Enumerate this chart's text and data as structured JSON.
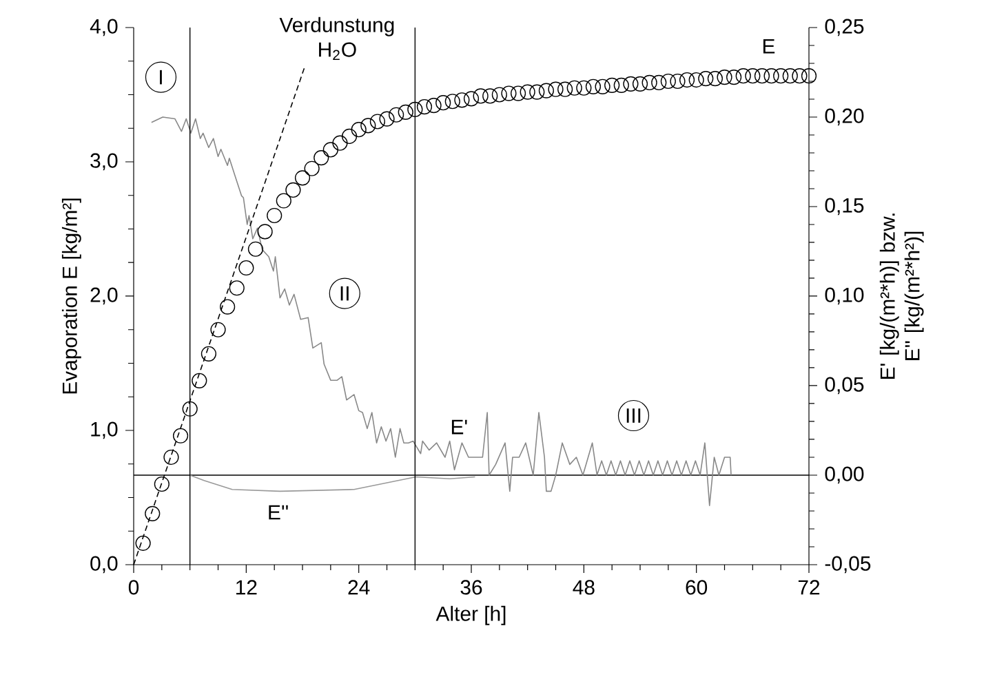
{
  "chart_data": {
    "type": "line",
    "xlabel": "Alter [h]",
    "ylabel": "Evaporation E [kg/m²]",
    "y2label": "E' [kg/(m²*h)] bzw. E'' [kg/(m²*h²)]",
    "xlim": [
      0,
      72
    ],
    "xticks": [
      0,
      12,
      24,
      36,
      48,
      60,
      72
    ],
    "ylim": [
      0,
      4
    ],
    "yticks": [
      {
        "value": 0,
        "label": "0,0"
      },
      {
        "value": 1,
        "label": "1,0"
      },
      {
        "value": 2,
        "label": "2,0"
      },
      {
        "value": 3,
        "label": "3,0"
      },
      {
        "value": 4,
        "label": "4,0"
      }
    ],
    "y2lim": [
      -0.05,
      0.25
    ],
    "y2ticks": [
      {
        "value": -0.05,
        "label": "-0,05"
      },
      {
        "value": 0,
        "label": "0,00"
      },
      {
        "value": 0.05,
        "label": "0,05"
      },
      {
        "value": 0.1,
        "label": "0,10"
      },
      {
        "value": 0.15,
        "label": "0,15"
      },
      {
        "value": 0.2,
        "label": "0,20"
      },
      {
        "value": 0.25,
        "label": "0,25"
      }
    ],
    "ref_lines": [
      {
        "axis": "x",
        "value": 6,
        "color": "#000000"
      },
      {
        "axis": "x",
        "value": 30,
        "color": "#000000"
      },
      {
        "axis": "y2",
        "value": 0,
        "color": "#000000"
      }
    ],
    "annotations": [
      "I",
      "II",
      "III"
    ],
    "series": [
      {
        "name": "E",
        "type": "scatter",
        "marker": "circle",
        "color": "#000000",
        "x": [
          1,
          2,
          3,
          4,
          5,
          6,
          7,
          8,
          9,
          10,
          11,
          12,
          13,
          14,
          15,
          16,
          17,
          18,
          19,
          20,
          21,
          22,
          23,
          24,
          25,
          26,
          27,
          28,
          29,
          30,
          31,
          32,
          33,
          34,
          35,
          36,
          37,
          38,
          39,
          40,
          41,
          42,
          43,
          44,
          45,
          46,
          47,
          48,
          49,
          50,
          51,
          52,
          53,
          54,
          55,
          56,
          57,
          58,
          59,
          60,
          61,
          62,
          63,
          64,
          65,
          66,
          67,
          68,
          69,
          70,
          71,
          72
        ],
        "values": [
          0.16,
          0.38,
          0.6,
          0.8,
          0.96,
          1.16,
          1.37,
          1.57,
          1.75,
          1.92,
          2.06,
          2.21,
          2.35,
          2.48,
          2.6,
          2.71,
          2.79,
          2.88,
          2.95,
          3.03,
          3.09,
          3.14,
          3.19,
          3.24,
          3.27,
          3.3,
          3.32,
          3.35,
          3.37,
          3.39,
          3.41,
          3.42,
          3.44,
          3.45,
          3.46,
          3.47,
          3.49,
          3.49,
          3.5,
          3.51,
          3.51,
          3.52,
          3.52,
          3.53,
          3.54,
          3.54,
          3.55,
          3.55,
          3.56,
          3.56,
          3.57,
          3.57,
          3.58,
          3.58,
          3.59,
          3.59,
          3.6,
          3.6,
          3.61,
          3.61,
          3.62,
          3.62,
          3.63,
          3.63,
          3.64,
          3.64,
          3.64,
          3.64,
          3.64,
          3.64,
          3.64,
          3.64
        ]
      },
      {
        "name": "Verdunstung H$_{2}$O",
        "type": "line",
        "marker": "none",
        "line_style": "dashed",
        "color": "#000000",
        "x": [
          0,
          18.2
        ],
        "values": [
          0,
          3.7
        ]
      },
      {
        "name": "E'",
        "type": "line",
        "marker": "none",
        "line_style": "solid",
        "axis": "y2",
        "color": "#888888",
        "x": [
          1.9,
          3.1,
          4.4,
          5.1,
          5.6,
          6.1,
          6.6,
          7.1,
          7.4,
          8.0,
          8.5,
          9.0,
          9.3,
          10.0,
          10.2,
          11.0,
          11.5,
          11.7,
          12.1,
          12.3,
          12.7,
          13.2,
          13.7,
          14.4,
          14.9,
          15.1,
          15.6,
          16.1,
          16.6,
          17.1,
          17.8,
          18.6,
          19.1,
          20.0,
          20.3,
          21.0,
          21.7,
          22.2,
          22.7,
          23.5,
          24.0,
          24.4,
          24.9,
          25.4,
          25.9,
          26.4,
          26.9,
          27.4,
          27.9,
          28.4,
          28.8,
          29.3,
          29.8,
          30.6,
          30.8,
          31.5,
          32.3,
          33.2,
          33.7,
          34.2,
          35.0,
          35.7,
          37.2,
          37.7,
          37.9,
          38.6,
          39.6,
          40.1,
          40.4,
          41.1,
          41.8,
          42.6,
          43.2,
          43.8,
          44.0,
          44.5,
          45.0,
          45.7,
          46.5,
          47.2,
          47.9,
          48.9,
          49.4,
          49.9,
          50.4,
          50.9,
          51.4,
          51.9,
          52.4,
          52.9,
          53.4,
          53.9,
          54.4,
          54.9,
          55.4,
          55.9,
          56.4,
          56.9,
          57.4,
          57.9,
          58.4,
          58.9,
          59.4,
          59.9,
          60.4,
          60.9,
          61.4,
          61.9,
          62.4,
          63.0,
          63.6,
          63.7
        ],
        "values": [
          0.197,
          0.2,
          0.199,
          0.192,
          0.199,
          0.191,
          0.199,
          0.188,
          0.191,
          0.183,
          0.188,
          0.178,
          0.182,
          0.173,
          0.177,
          0.164,
          0.156,
          0.155,
          0.14,
          0.145,
          0.132,
          0.138,
          0.126,
          0.122,
          0.114,
          0.122,
          0.099,
          0.104,
          0.095,
          0.101,
          0.087,
          0.088,
          0.071,
          0.074,
          0.062,
          0.053,
          0.053,
          0.055,
          0.042,
          0.045,
          0.036,
          0.035,
          0.026,
          0.035,
          0.018,
          0.027,
          0.019,
          0.026,
          0.01,
          0.026,
          0.018,
          0.018,
          0.019,
          0.012,
          0.019,
          0.014,
          0.018,
          0.01,
          0.019,
          0.003,
          0.018,
          0.01,
          0.01,
          0.035,
          0,
          0.006,
          0.018,
          -0.009,
          0.01,
          0.01,
          0.018,
          0,
          0.035,
          0.01,
          -0.009,
          -0.009,
          0,
          0.018,
          0.006,
          0.01,
          0,
          0.018,
          0,
          0.008,
          0,
          0.008,
          0,
          0.008,
          0,
          0.008,
          0,
          0.008,
          0,
          0.008,
          0,
          0.008,
          0,
          0.008,
          0,
          0.008,
          0,
          0.008,
          0,
          0.008,
          0,
          0.018,
          -0.017,
          0.01,
          0,
          0.01,
          0.01,
          0
        ]
      },
      {
        "name": "E''",
        "type": "line",
        "marker": "none",
        "line_style": "solid",
        "axis": "y2",
        "color": "#999999",
        "x": [
          6,
          7.5,
          10.5,
          15.6,
          23.5,
          30.1,
          33.7,
          36.4
        ],
        "values": [
          0,
          -0.003,
          -0.008,
          -0.009,
          -0.008,
          -0.001,
          -0.002,
          -0.001
        ]
      }
    ]
  }
}
